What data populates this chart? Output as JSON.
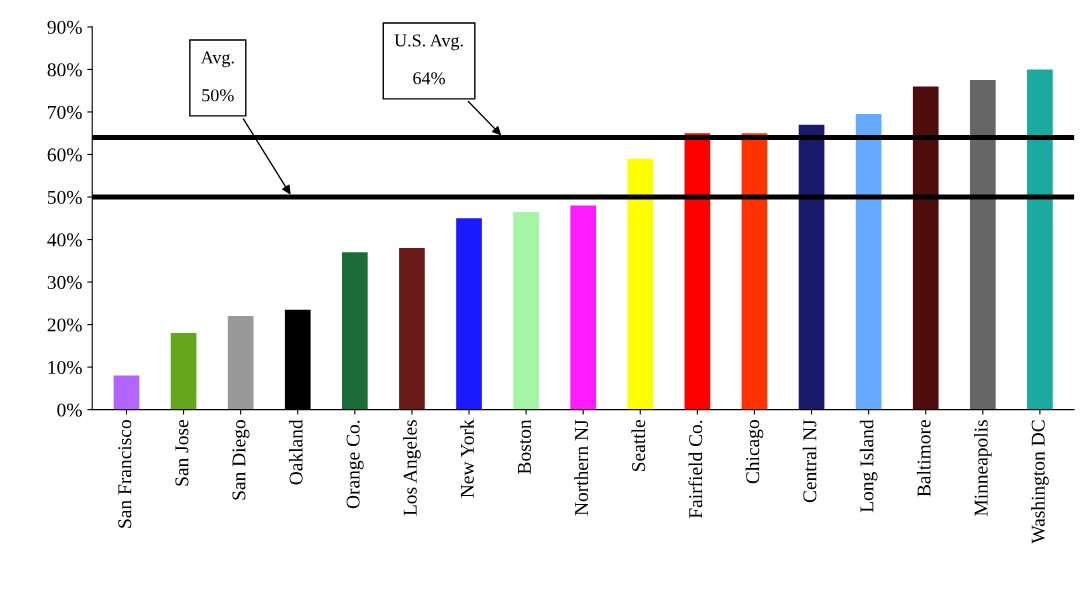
{
  "chart_data": {
    "type": "bar",
    "categories": [
      "San Francisco",
      "San Jose",
      "San Diego",
      "Oakland",
      "Orange Co.",
      "Los Angeles",
      "New York",
      "Boston",
      "Northern NJ",
      "Seattle",
      "Fairfield Co.",
      "Chicago",
      "Central NJ",
      "Long Island",
      "Baltimore",
      "Minneapolis",
      "Washington DC"
    ],
    "values": [
      8,
      18,
      22,
      23.5,
      37,
      38,
      45,
      46.5,
      48,
      59,
      65,
      65,
      67,
      69.5,
      76,
      77.5,
      80
    ],
    "colors": [
      "#b266ff",
      "#66a61e",
      "#999999",
      "#000000",
      "#1e6b3a",
      "#6b1a1a",
      "#1a1aff",
      "#a6f5a6",
      "#ff1aff",
      "#ffff00",
      "#ff0000",
      "#ff3300",
      "#1a1a6b",
      "#66aaff",
      "#4d0d0d",
      "#666666",
      "#1aaaa0"
    ],
    "ylim": [
      0,
      90
    ],
    "yticks": [
      {
        "value": 0,
        "label": "0%"
      },
      {
        "value": 10,
        "label": "10%"
      },
      {
        "value": 20,
        "label": "20%"
      },
      {
        "value": 30,
        "label": "30%"
      },
      {
        "value": 40,
        "label": "40%"
      },
      {
        "value": 50,
        "label": "50%"
      },
      {
        "value": 60,
        "label": "60%"
      },
      {
        "value": 70,
        "label": "70%"
      },
      {
        "value": 80,
        "label": "80%"
      },
      {
        "value": 90,
        "label": "90%"
      }
    ],
    "ref_lines": [
      {
        "axis": "y",
        "value": 50,
        "label": "Avg.\n\n50%",
        "color": "#000000"
      },
      {
        "axis": "y",
        "value": 64,
        "label": "U.S. Avg.\n\n64%",
        "color": "#000000"
      }
    ],
    "grid": false,
    "legend": false
  }
}
